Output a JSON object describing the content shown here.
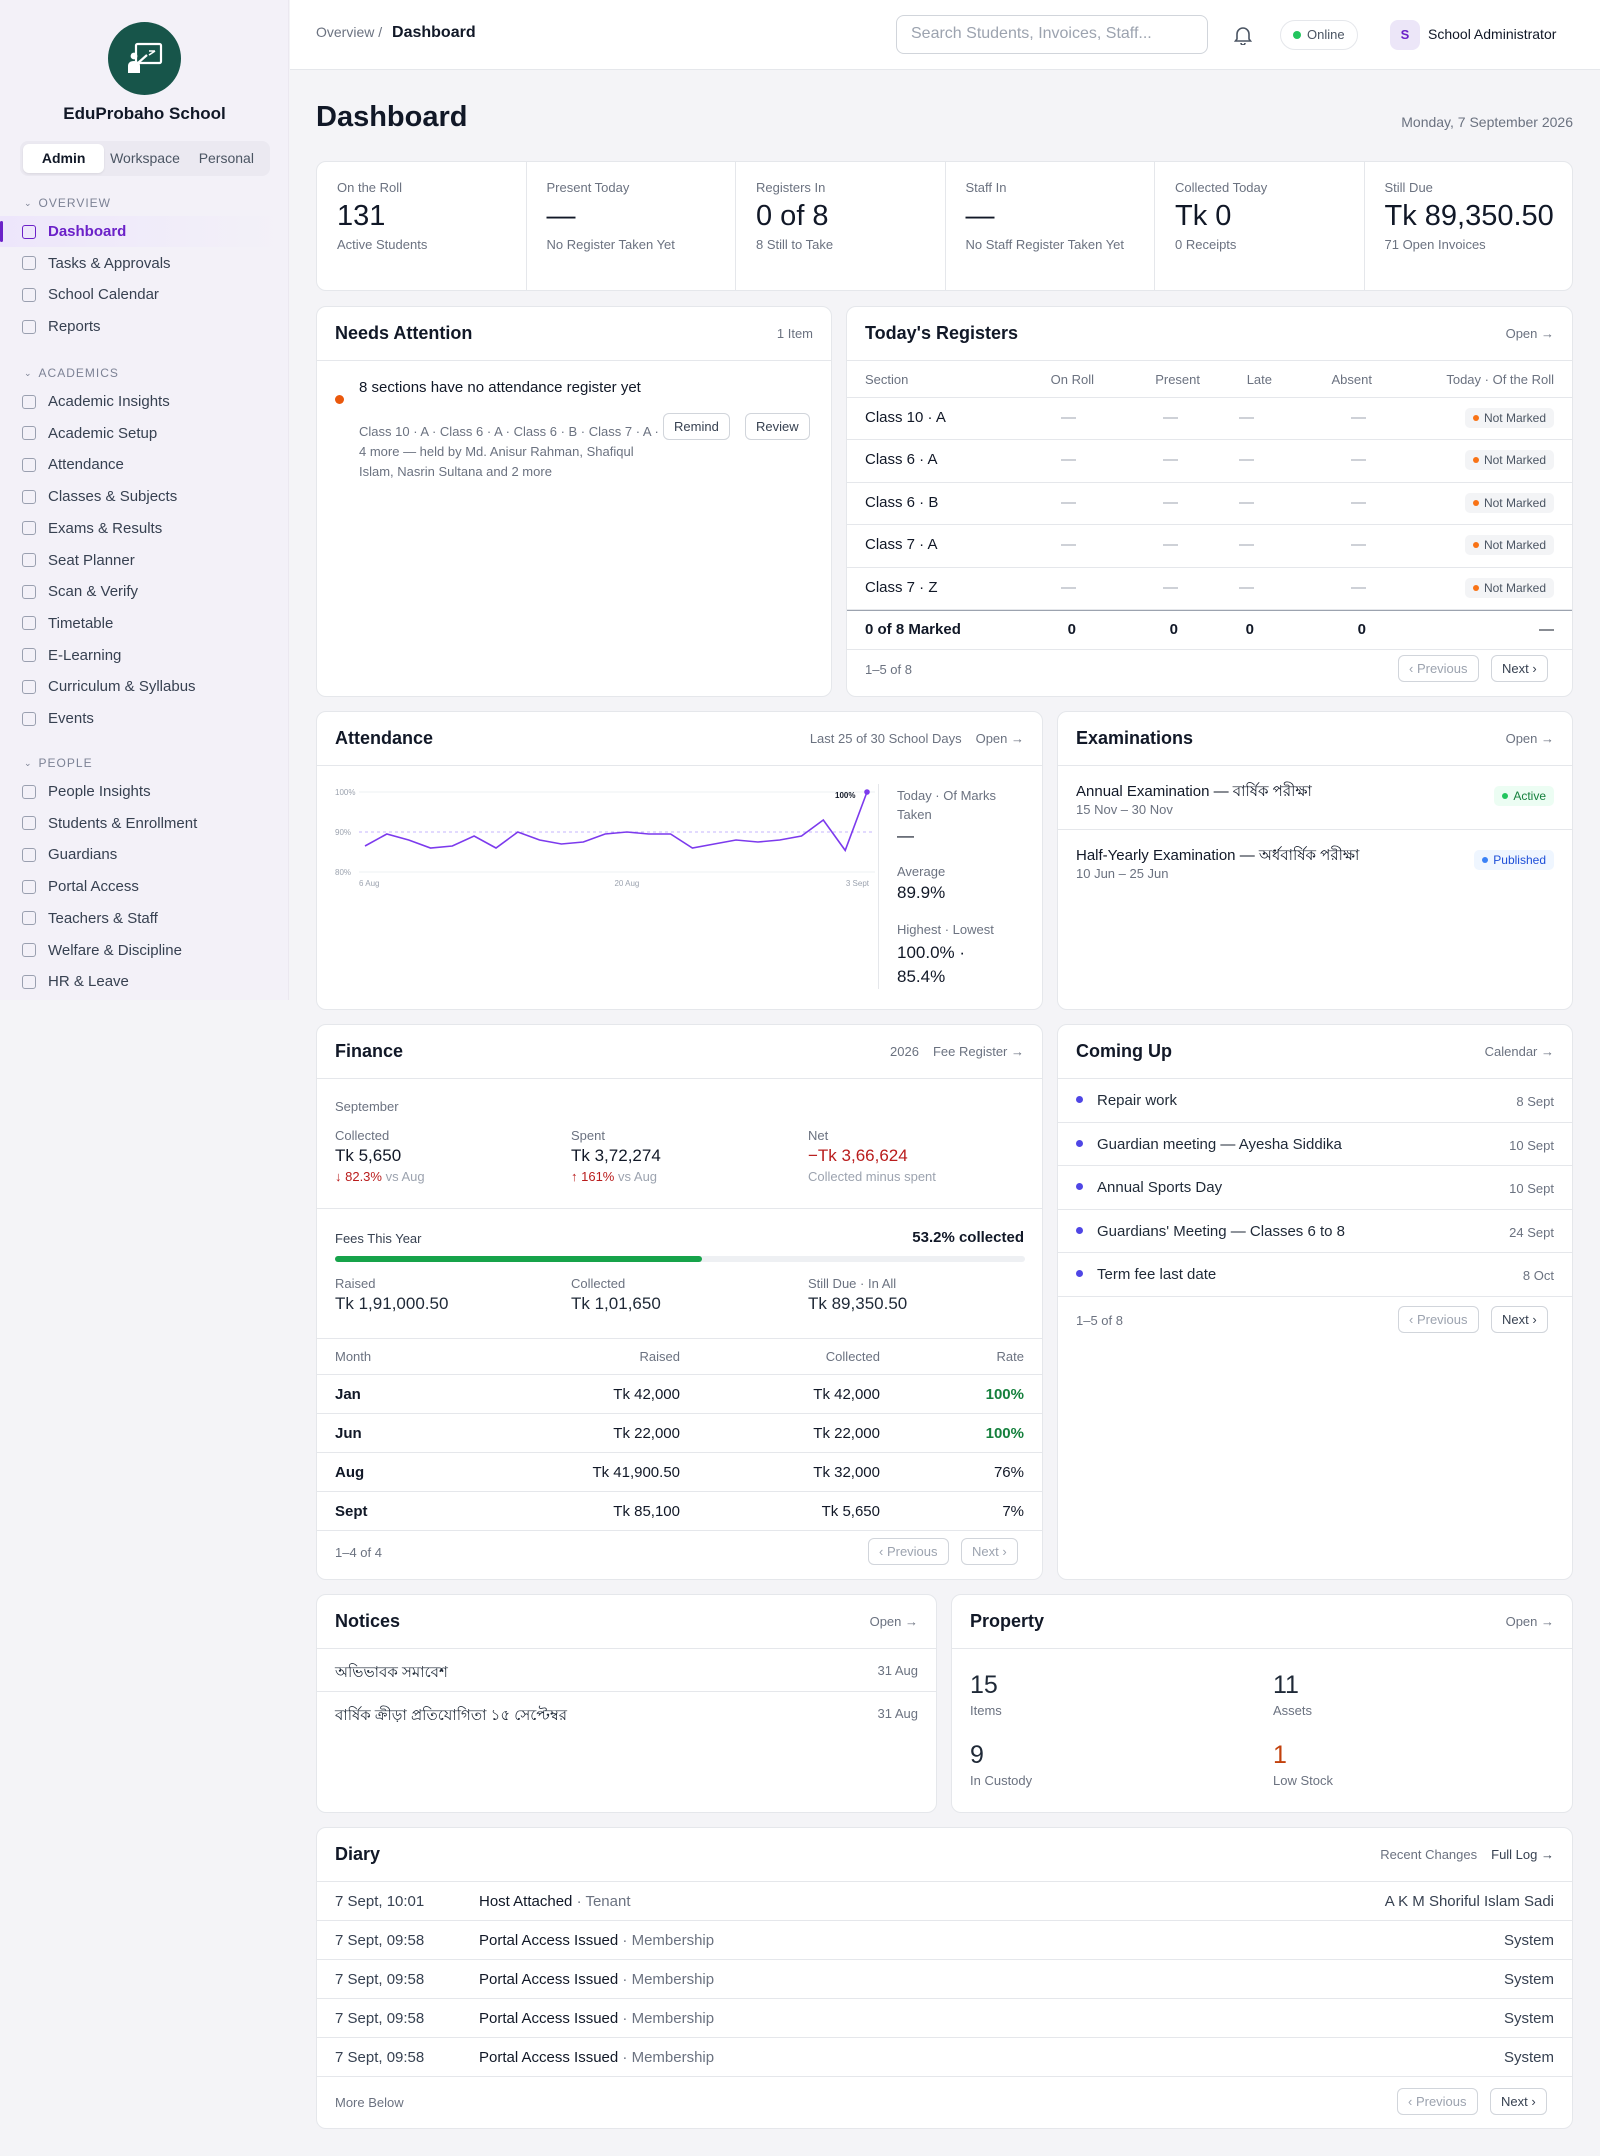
{
  "sidebar": {
    "school_name": "EduProbaho School",
    "modes": [
      "Admin",
      "Workspace",
      "Personal"
    ],
    "overview_label": "OVERVIEW",
    "overview": [
      "Dashboard",
      "Tasks & Approvals",
      "School Calendar",
      "Reports"
    ],
    "academics_label": "ACADEMICS",
    "academics": [
      "Academic Insights",
      "Academic Setup",
      "Attendance",
      "Classes & Subjects",
      "Exams & Results",
      "Seat Planner",
      "Scan & Verify",
      "Timetable",
      "E-Learning",
      "Curriculum & Syllabus",
      "Events"
    ],
    "people_label": "PEOPLE",
    "people": [
      "People Insights",
      "Students & Enrollment",
      "Guardians",
      "Portal Access",
      "Teachers & Staff",
      "Welfare & Discipline",
      "HR & Leave"
    ]
  },
  "topbar": {
    "crumb_parent": "Overview",
    "crumb_sep": "/",
    "crumb_current": "Dashboard",
    "search_placeholder": "Search Students, Invoices, Staff...",
    "status": "Online",
    "avatar": "S",
    "user": "School Administrator"
  },
  "page": {
    "title": "Dashboard",
    "date": "Monday, 7 September 2026"
  },
  "kpis": [
    {
      "label": "On the Roll",
      "value": "131",
      "sub": "Active Students"
    },
    {
      "label": "Present Today",
      "value": "—",
      "sub": "No Register Taken Yet"
    },
    {
      "label": "Registers In",
      "value": "0 of 8",
      "sub": "8 Still to Take"
    },
    {
      "label": "Staff In",
      "value": "—",
      "sub": "No Staff Register Taken Yet"
    },
    {
      "label": "Collected Today",
      "value": "Tk 0",
      "sub": "0 Receipts"
    },
    {
      "label": "Still Due",
      "value": "Tk 89,350.50",
      "sub": "71 Open Invoices"
    }
  ],
  "attention": {
    "title": "Needs Attention",
    "count": "1 Item",
    "item_title": "8 sections have no attendance register yet",
    "item_desc": "Class 10 · A · Class 6 · A · Class 6 · B · Class 7 · A · 4 more — held by Md. Anisur Rahman, Shafiqul Islam, Nasrin Sultana and 2 more",
    "remind": "Remind",
    "review": "Review"
  },
  "registers": {
    "title": "Today's Registers",
    "open": "Open →",
    "headers": [
      "Section",
      "On Roll",
      "Present",
      "Late",
      "Absent",
      "Today · Of the Roll"
    ],
    "rows": [
      {
        "section": "Class 10 · A",
        "on_roll": "—",
        "present": "—",
        "late": "—",
        "absent": "—",
        "status": "Not Marked"
      },
      {
        "section": "Class 6 · A",
        "on_roll": "—",
        "present": "—",
        "late": "—",
        "absent": "—",
        "status": "Not Marked"
      },
      {
        "section": "Class 6 · B",
        "on_roll": "—",
        "present": "—",
        "late": "—",
        "absent": "—",
        "status": "Not Marked"
      },
      {
        "section": "Class 7 · A",
        "on_roll": "—",
        "present": "—",
        "late": "—",
        "absent": "—",
        "status": "Not Marked"
      },
      {
        "section": "Class 7 · Z",
        "on_roll": "—",
        "present": "—",
        "late": "—",
        "absent": "—",
        "status": "Not Marked"
      }
    ],
    "total": {
      "section": "0 of 8 Marked",
      "on_roll": "0",
      "present": "0",
      "late": "0",
      "absent": "0",
      "status": "—"
    },
    "range": "1–5 of 8",
    "prev": "‹ Previous",
    "next": "Next ›"
  },
  "attendance": {
    "title": "Attendance",
    "range": "Last 25 of 30 School Days",
    "open": "Open →",
    "today_label": "Today · Of Marks Taken",
    "today_value": "—",
    "avg_label": "Average",
    "avg_value": "89.9%",
    "hl_label": "Highest · Lowest",
    "hl_value": "100.0% · 85.4%"
  },
  "chart_data": {
    "type": "line",
    "y_ticks": [
      "100%",
      "90%",
      "80%"
    ],
    "x_ticks": [
      "6 Aug",
      "20 Aug",
      "3 Sept"
    ],
    "ylim": [
      80,
      100
    ],
    "peak_label": "100%",
    "values": [
      86.5,
      89.5,
      88,
      86,
      86.5,
      89,
      86,
      90,
      88,
      87,
      87.5,
      89.5,
      90,
      89.5,
      89.5,
      86,
      87,
      88,
      87.5,
      88,
      89,
      93,
      85.4,
      100
    ]
  },
  "exams": {
    "title": "Examinations",
    "open": "Open →",
    "items": [
      {
        "name": "Annual Examination — বার্ষিক পরীক্ষা",
        "dates": "15 Nov – 30 Nov",
        "status": "Active"
      },
      {
        "name": "Half-Yearly Examination — অর্ধবার্ষিক পরীক্ষা",
        "dates": "10 Jun – 25 Jun",
        "status": "Published"
      }
    ]
  },
  "finance": {
    "title": "Finance",
    "year": "2026",
    "link": "Fee Register →",
    "month": "September",
    "collected_label": "Collected",
    "collected": "Tk 5,650",
    "collected_delta": "↓ 82.3%",
    "collected_vs": "vs Aug",
    "spent_label": "Spent",
    "spent": "Tk 3,72,274",
    "spent_delta": "↑ 161%",
    "spent_vs": "vs Aug",
    "net_label": "Net",
    "net": "−Tk 3,66,624",
    "net_note": "Collected minus spent",
    "fees_label": "Fees This Year",
    "fees_pct_text": "53.2% collected",
    "fees_progress": 0.532,
    "raised_label": "Raised",
    "raised": "Tk 1,91,000.50",
    "col2_label": "Collected",
    "col2": "Tk 1,01,650",
    "due_label": "Still Due · In All",
    "due": "Tk 89,350.50",
    "headers": [
      "Month",
      "Raised",
      "Collected",
      "Rate"
    ],
    "rows": [
      {
        "m": "Jan",
        "r": "Tk 42,000",
        "c": "Tk 42,000",
        "rate": "100%"
      },
      {
        "m": "Jun",
        "r": "Tk 22,000",
        "c": "Tk 22,000",
        "rate": "100%"
      },
      {
        "m": "Aug",
        "r": "Tk 41,900.50",
        "c": "Tk 32,000",
        "rate": "76%"
      },
      {
        "m": "Sept",
        "r": "Tk 85,100",
        "c": "Tk 5,650",
        "rate": "7%"
      }
    ],
    "range": "1–4 of 4",
    "prev": "‹ Previous",
    "next": "Next ›"
  },
  "coming": {
    "title": "Coming Up",
    "link": "Calendar →",
    "items": [
      {
        "name": "Repair work",
        "date": "8 Sept"
      },
      {
        "name": "Guardian meeting — Ayesha Siddika",
        "date": "10 Sept"
      },
      {
        "name": "Annual Sports Day",
        "date": "10 Sept"
      },
      {
        "name": "Guardians' Meeting — Classes 6 to 8",
        "date": "24 Sept"
      },
      {
        "name": "Term fee last date",
        "date": "8 Oct"
      }
    ],
    "range": "1–5 of 8",
    "prev": "‹ Previous",
    "next": "Next ›"
  },
  "notices": {
    "title": "Notices",
    "open": "Open →",
    "items": [
      {
        "name": "অভিভাবক সমাবেশ",
        "date": "31 Aug"
      },
      {
        "name": "বার্ষিক ক্রীড়া প্রতিযোগিতা ১৫ সেপ্টেম্বর",
        "date": "31 Aug"
      }
    ]
  },
  "property": {
    "title": "Property",
    "open": "Open →",
    "items_v": "15",
    "items_l": "Items",
    "assets_v": "11",
    "assets_l": "Assets",
    "custody_v": "9",
    "custody_l": "In Custody",
    "low_v": "1",
    "low_l": "Low Stock"
  },
  "diary": {
    "title": "Diary",
    "recent": "Recent Changes",
    "full": "Full Log →",
    "rows": [
      {
        "time": "7 Sept, 10:01",
        "action": "Host Attached",
        "kind": "· Tenant",
        "who": "A K M Shoriful Islam Sadi"
      },
      {
        "time": "7 Sept, 09:58",
        "action": "Portal Access Issued",
        "kind": "· Membership",
        "who": "System"
      },
      {
        "time": "7 Sept, 09:58",
        "action": "Portal Access Issued",
        "kind": "· Membership",
        "who": "System"
      },
      {
        "time": "7 Sept, 09:58",
        "action": "Portal Access Issued",
        "kind": "· Membership",
        "who": "System"
      },
      {
        "time": "7 Sept, 09:58",
        "action": "Portal Access Issued",
        "kind": "· Membership",
        "who": "System"
      }
    ],
    "more": "More Below",
    "prev": "‹ Previous",
    "next": "Next ›"
  },
  "colors": {
    "accent": "#6b21c8",
    "brand": "#17554a",
    "danger": "#b91c1c",
    "success": "#15803d",
    "line": "#7c3aed"
  }
}
